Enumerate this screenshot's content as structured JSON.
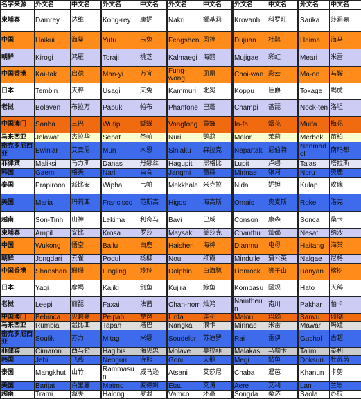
{
  "colors": {
    "white": "#ffffff",
    "orange": "#ff8c1a",
    "lav": "#ccccf5",
    "blue": "#3d6bec",
    "dorange": "#f06a10",
    "paleyellow": "#fefecf",
    "lavender": "#e4e4f7",
    "gray": "#dedede",
    "gray2": "#cccccc"
  },
  "header": [
    "名字来源",
    "外文名",
    "中文名",
    "外文名",
    "中文名",
    "外文名",
    "中文名",
    "外文名",
    "中文名",
    "外文名",
    "中文名"
  ],
  "rows": [
    {
      "label": "柬埔寨",
      "color": "white",
      "h": 32,
      "pairs": [
        [
          "Damrey",
          "达维"
        ],
        [
          "Kong-rey",
          "康妮"
        ],
        [
          "Nakri",
          "娜基莉"
        ],
        [
          "Krovanh",
          "科罗旺"
        ],
        [
          "Sarika",
          "莎莉嘉"
        ]
      ]
    },
    {
      "label": "中国",
      "color": "orange",
      "h": 25,
      "pairs": [
        [
          "Haikui",
          "海葵"
        ],
        [
          "Yutu",
          "玉兔"
        ],
        [
          "Fengshen",
          "风神"
        ],
        [
          "Dujuan",
          "杜鹃"
        ],
        [
          "Haima",
          "海马"
        ]
      ]
    },
    {
      "label": "朝鲜",
      "color": "lav",
      "h": 25,
      "pairs": [
        [
          "Kirogi",
          "鸿雁"
        ],
        [
          "Toraji",
          "桃芝"
        ],
        [
          "Kalmaegi",
          "海鸥"
        ],
        [
          "Mujigae",
          "彩虹"
        ],
        [
          "Meari",
          "米雷"
        ]
      ]
    },
    {
      "label": "中国香港",
      "color": "orange",
      "h": 24,
      "pairs": [
        [
          "Kai-tak",
          "启德"
        ],
        [
          "Man-yi",
          "万宜"
        ],
        [
          "Fung-wong",
          "凤凰"
        ],
        [
          "Choi-wan",
          "彩云"
        ],
        [
          "Ma-on",
          "马鞍"
        ]
      ]
    },
    {
      "label": "日本",
      "color": "white",
      "h": 24,
      "pairs": [
        [
          "Tembin",
          "天秤"
        ],
        [
          "Usagi",
          "天兔"
        ],
        [
          "Kammuri",
          "北冕"
        ],
        [
          "Koppu",
          "巨爵"
        ],
        [
          "Tokage",
          "蝎虎"
        ]
      ]
    },
    {
      "label": "老挝",
      "color": "lav",
      "h": 24,
      "pairs": [
        [
          "Bolaven",
          "布拉万"
        ],
        [
          "Pabuk",
          "帕布"
        ],
        [
          "Phanfone",
          "巴蓬"
        ],
        [
          "Champi",
          "蔷琵"
        ],
        [
          "Nock-ten",
          "洛坦"
        ]
      ]
    },
    {
      "label": "中国澳门",
      "color": "dorange",
      "h": 24,
      "pairs": [
        [
          "Sanba",
          "三巴"
        ],
        [
          "Wutip",
          "蝴蝶"
        ],
        [
          "Vongfong",
          "黄蜂"
        ],
        [
          "In-fa",
          "烟花"
        ],
        [
          "Muifa",
          "梅花"
        ]
      ]
    },
    {
      "label": "马来西亚",
      "color": "paleyellow",
      "h": 13,
      "pairs": [
        [
          "Jelawat",
          "杰拉华"
        ],
        [
          "Sepat",
          "圣帕"
        ],
        [
          "Nuri",
          "鹦鹉"
        ],
        [
          "Melor",
          "茉莉"
        ],
        [
          "Merbok",
          "苗柏"
        ]
      ]
    },
    {
      "label": "密克罗尼西亚",
      "color": "blue",
      "h": 25,
      "pairs": [
        [
          "Ewiniar",
          "艾云尼"
        ],
        [
          "Mun",
          "木恩"
        ],
        [
          "Sinlaku",
          "森拉克"
        ],
        [
          "Nepartak",
          "尼伯特"
        ],
        [
          "Nanmadol",
          "南玛都"
        ]
      ]
    },
    {
      "label": "菲律宾",
      "color": "lavender",
      "h": 13,
      "pairs": [
        [
          "Maliksi",
          "马力斯"
        ],
        [
          "Danas",
          "丹娜丝"
        ],
        [
          "Hagupit",
          "黑格比"
        ],
        [
          "Lupit",
          "卢碧"
        ],
        [
          "Talas",
          "塔拉斯"
        ]
      ]
    },
    {
      "label": "韩国",
      "color": "blue",
      "h": 13,
      "pairs": [
        [
          "Gaemi",
          "格美"
        ],
        [
          "Nari",
          "百合"
        ],
        [
          "Jangmi",
          "蔷薇"
        ],
        [
          "Mirinae",
          "银河"
        ],
        [
          "Noru",
          "奥鹿"
        ]
      ]
    },
    {
      "label": "泰国",
      "color": "white",
      "h": 24,
      "pairs": [
        [
          "Prapiroon",
          "派比安"
        ],
        [
          "Wipha",
          "韦帕"
        ],
        [
          "Mekkhala",
          "米克拉"
        ],
        [
          "Nida",
          "妮妲"
        ],
        [
          "Kulap",
          "玫瑰"
        ]
      ]
    },
    {
      "label": "美国",
      "color": "blue",
      "h": 25,
      "pairs": [
        [
          "Maria",
          "玛莉亚"
        ],
        [
          "Francisco",
          "范斯高"
        ],
        [
          "Higos",
          "海高斯"
        ],
        [
          "Omais",
          "奥麦斯"
        ],
        [
          "Roke",
          "洛克"
        ]
      ]
    },
    {
      "label": "越南",
      "color": "white",
      "h": 25,
      "pairs": [
        [
          "Son-Tinh",
          "山神"
        ],
        [
          "Lekima",
          "利奇马"
        ],
        [
          "Bavi",
          "巴威"
        ],
        [
          "Conson",
          "康森"
        ],
        [
          "Sonca",
          "桑卡"
        ]
      ]
    },
    {
      "label": "柬埔寨",
      "color": "lav",
      "h": 13,
      "pairs": [
        [
          "Ampil",
          "安比"
        ],
        [
          "Krosa",
          "罗莎"
        ],
        [
          "Maysak",
          "美莎克"
        ],
        [
          "Chanthu",
          "灿都"
        ],
        [
          "Nesat",
          "纳沙"
        ]
      ]
    },
    {
      "label": "中国",
      "color": "orange",
      "h": 24,
      "pairs": [
        [
          "Wukong",
          "悟空"
        ],
        [
          "Bailu",
          "白鹿"
        ],
        [
          "Haishen",
          "海神"
        ],
        [
          "Dianmu",
          "电母"
        ],
        [
          "Haitang",
          "海棠"
        ]
      ]
    },
    {
      "label": "朝鲜",
      "color": "lav",
      "h": 13,
      "pairs": [
        [
          "Jongdari",
          "云雀"
        ],
        [
          "Podul",
          "杨柳"
        ],
        [
          "Noul",
          "红霞"
        ],
        [
          "Mindulle",
          "蒲公英"
        ],
        [
          "Nalgae",
          "尼格"
        ]
      ]
    },
    {
      "label": "中国香港",
      "color": "orange",
      "h": 24,
      "pairs": [
        [
          "Shanshan",
          "珊珊"
        ],
        [
          "Lingling",
          "玲玲"
        ],
        [
          "Dolphin",
          "白海豚"
        ],
        [
          "Lionrock",
          "狮子山"
        ],
        [
          "Banyan",
          "榕树"
        ]
      ]
    },
    {
      "label": "日本",
      "color": "white",
      "h": 24,
      "pairs": [
        [
          "Yagi",
          "摩羯"
        ],
        [
          "Kajiki",
          "剑鱼"
        ],
        [
          "Kujira",
          "鲸鱼"
        ],
        [
          "Kompasu",
          "圆规"
        ],
        [
          "Hato",
          "天鸽"
        ]
      ]
    },
    {
      "label": "老挝",
      "color": "lav",
      "h": 24,
      "pairs": [
        [
          "Leepi",
          "丽琵"
        ],
        [
          "Faxai",
          "法茜"
        ],
        [
          "Chan-hom",
          "灿鸿"
        ],
        [
          "Namtheun",
          "南川"
        ],
        [
          "Pakhar",
          "帕卡"
        ]
      ]
    },
    {
      "label": "中国澳门",
      "color": "dorange",
      "h": 12,
      "pairs": [
        [
          "Bebinca",
          "贝碧嘉"
        ],
        [
          "Peipah",
          "琵琶"
        ],
        [
          "Linfa",
          "莲花"
        ],
        [
          "Malou",
          "玛瑙"
        ],
        [
          "Sanvu",
          "珊瑚"
        ]
      ]
    },
    {
      "label": "马来西亚",
      "color": "gray",
      "h": 12,
      "pairs": [
        [
          "Rumbia",
          "温比亚"
        ],
        [
          "Tapah",
          "塔巴"
        ],
        [
          "Nangka",
          "浪卡"
        ],
        [
          "Mirinae",
          "米雷"
        ],
        [
          "Mawar",
          "玛娃"
        ]
      ]
    },
    {
      "label": "密克罗尼西亚",
      "color": "blue",
      "h": 25,
      "pairs": [
        [
          "Soulik",
          "苏力"
        ],
        [
          "Mitag",
          "米娜"
        ],
        [
          "Soudelor",
          "苏迪罗"
        ],
        [
          "Rai",
          "雷伊"
        ],
        [
          "Guchol",
          "古超"
        ]
      ]
    },
    {
      "label": "菲律宾",
      "color": "gray2",
      "h": 12,
      "pairs": [
        [
          "Cimaron",
          "西马仑"
        ],
        [
          "Hagibis",
          "海贝思"
        ],
        [
          "Molave",
          "莫拉菲"
        ],
        [
          "Malakas",
          "马勒卡"
        ],
        [
          "Talim",
          "泰利"
        ]
      ]
    },
    {
      "label": "韩国",
      "color": "blue",
      "h": 13,
      "pairs": [
        [
          "Jebi",
          "飞燕"
        ],
        [
          "Neoguri",
          "浣熊"
        ],
        [
          "Goni",
          "天鹅"
        ],
        [
          "Megi",
          "鲇鱼"
        ],
        [
          "Doksuri",
          "杜苏芮"
        ]
      ]
    },
    {
      "label": "泰国",
      "color": "white",
      "h": 24,
      "pairs": [
        [
          "Mangkhut",
          "山竹"
        ],
        [
          "Rammasun",
          "威马逊"
        ],
        [
          "Atsani",
          "艾莎尼"
        ],
        [
          "Chaba",
          "暹芭"
        ],
        [
          "Khanun",
          "卡努"
        ]
      ]
    },
    {
      "label": "美国",
      "color": "blue",
      "h": 13,
      "pairs": [
        [
          "Barijat",
          "百里嘉"
        ],
        [
          "Matmo",
          "麦德姆"
        ],
        [
          "Etau",
          "艾涛"
        ],
        [
          "Aere",
          "艾利"
        ],
        [
          "Lan",
          "兰恩"
        ]
      ]
    },
    {
      "label": "越南",
      "color": "white",
      "h": 12,
      "pairs": [
        [
          "Trami",
          "潭美"
        ],
        [
          "Halong",
          "夏浪"
        ],
        [
          "Vamco",
          "环高"
        ],
        [
          "Songda",
          "桑达"
        ],
        [
          "Saola",
          "苏拉"
        ]
      ]
    }
  ]
}
